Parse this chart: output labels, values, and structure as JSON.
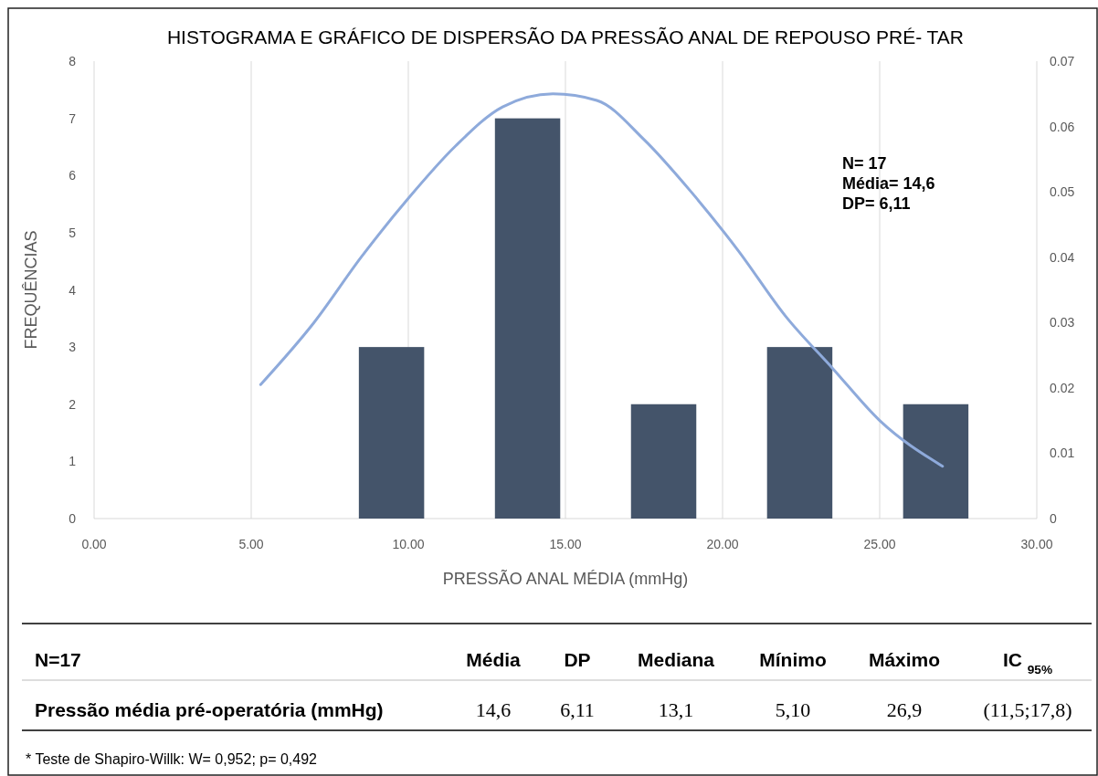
{
  "chart_data": {
    "type": "histogram",
    "title": "HISTOGRAMA E GRÁFICO DE DISPERSÃO DA PRESSÃO ANAL DE REPOUSO PRÉ- TAR",
    "xlabel": "PRESSÃO ANAL MÉDIA (mmHg)",
    "ylabel": "FREQUÊNCIAS",
    "bins": [
      7.3,
      11.63,
      15.96,
      20.29,
      24.62,
      28.95
    ],
    "values": [
      3,
      7,
      2,
      3,
      2
    ],
    "color": "#44546a",
    "series": [
      {
        "type": "line",
        "axis": "y2",
        "color": "#8eaadb",
        "x": [
          5.3,
          7,
          8.5,
          10,
          11.5,
          13,
          14.6,
          16,
          17.5,
          19,
          20.5,
          22,
          23.5,
          25,
          27
        ],
        "values": [
          0.0205,
          0.03,
          0.04,
          0.049,
          0.057,
          0.063,
          0.065,
          0.064,
          0.058,
          0.05,
          0.041,
          0.031,
          0.023,
          0.015,
          0.008
        ]
      }
    ],
    "xlim": [
      0,
      30
    ],
    "xticks": [
      {
        "value": 0,
        "label": "0.00"
      },
      {
        "value": 5,
        "label": "5.00"
      },
      {
        "value": 10,
        "label": "10.00"
      },
      {
        "value": 15,
        "label": "15.00"
      },
      {
        "value": 20,
        "label": "20.00"
      },
      {
        "value": 25,
        "label": "25.00"
      },
      {
        "value": 30,
        "label": "30.00"
      }
    ],
    "ylim": [
      0,
      8
    ],
    "yticks": [
      0,
      1,
      2,
      3,
      4,
      5,
      6,
      7,
      8
    ],
    "y2lim": [
      0,
      0.07
    ],
    "y2ticks": [
      0,
      0.01,
      0.02,
      0.03,
      0.04,
      0.05,
      0.06,
      0.07
    ],
    "grid": "x",
    "annotations": [
      "N= 17",
      "Média=  14,6",
      "DP= 6,11",
      "N=17",
      "Média",
      "DP",
      "Mediana",
      "Mínimo",
      "Máximo",
      "IC $_{95%}$",
      "Pressão média pré-operatória  (mmHg)",
      "14,6",
      "6,11",
      "13,1",
      "5,10",
      "26,9",
      "(11,5;17,8)",
      "* Teste de Shapiro-Willk: W= 0,952; p= 0,492"
    ]
  }
}
